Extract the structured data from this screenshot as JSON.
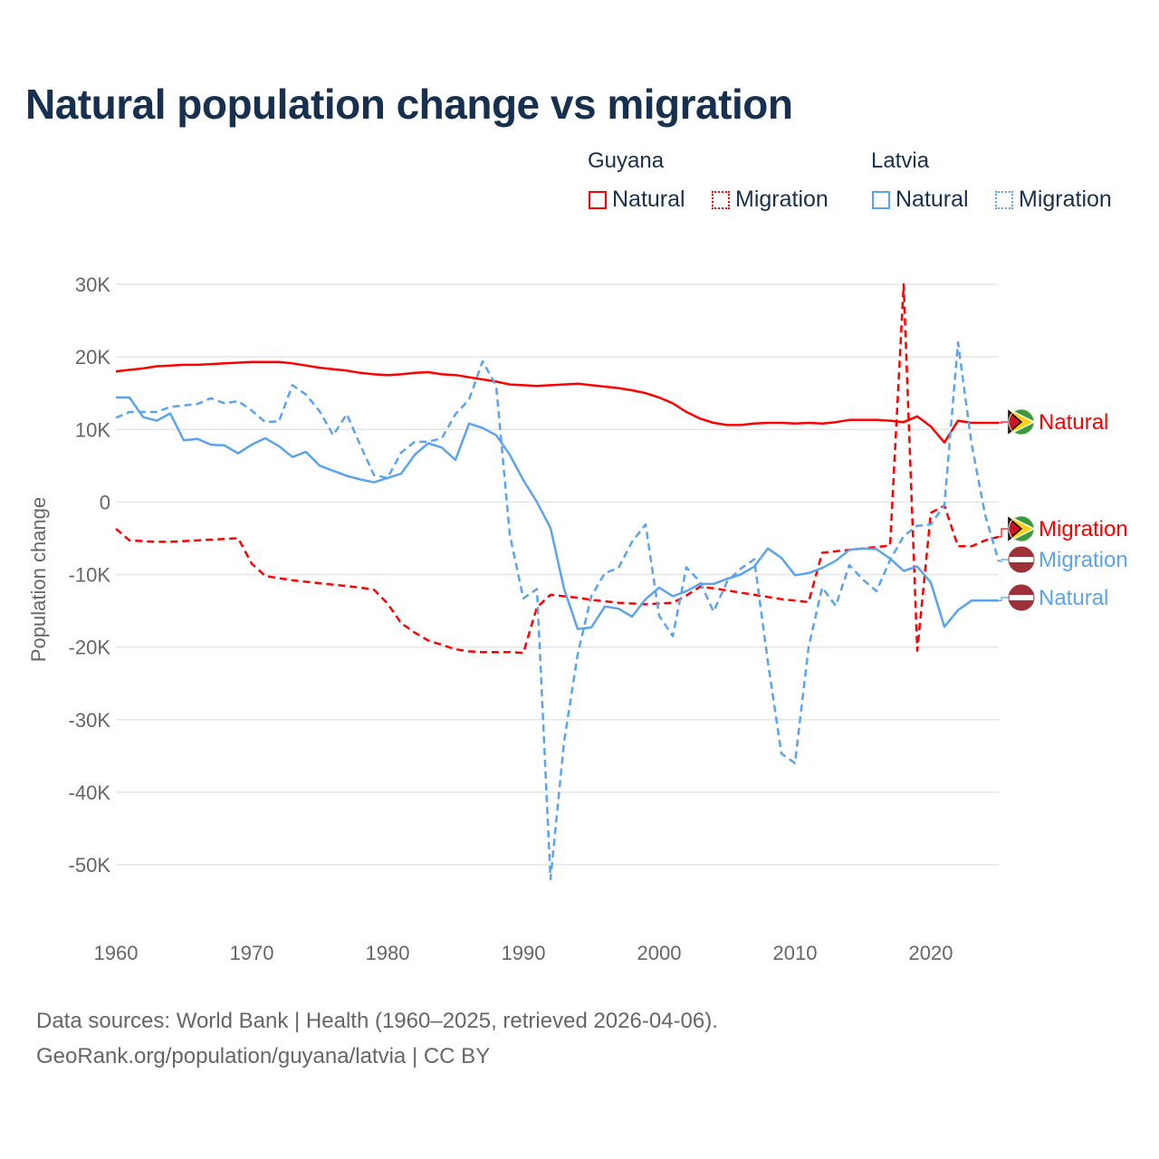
{
  "title": "Natural population change vs migration",
  "legend": {
    "groups": [
      {
        "name": "Guyana",
        "items": [
          {
            "label": "Natural",
            "style": "solid"
          },
          {
            "label": "Migration",
            "style": "dotted"
          }
        ],
        "color": "#ff0000"
      },
      {
        "name": "Latvia",
        "items": [
          {
            "label": "Natural",
            "style": "solid"
          },
          {
            "label": "Migration",
            "style": "dotted"
          }
        ],
        "color": "#5ba4ec"
      }
    ]
  },
  "footer": {
    "line1": "Data sources: World Bank | Health (1960–2025, retrieved 2026-04-06).",
    "line2": "GeoRank.org/population/guyana/latvia | CC BY"
  },
  "chart_data": {
    "type": "line",
    "title": "Natural population change vs migration",
    "xlabel": "",
    "ylabel": "Population change",
    "xlim": [
      1960,
      2025
    ],
    "ylim": [
      -50000,
      30000
    ],
    "x_ticks": [
      1960,
      1970,
      1980,
      1990,
      2000,
      2010,
      2020
    ],
    "x_tick_labels": [
      "1960",
      "1970",
      "1980",
      "1990",
      "2000",
      "2010",
      "2020"
    ],
    "y_ticks": [
      30000,
      20000,
      10000,
      0,
      -10000,
      -20000,
      -30000,
      -40000,
      -50000
    ],
    "y_tick_labels": [
      "30K",
      "20K",
      "10K",
      "0",
      "-10K",
      "-20K",
      "-30K",
      "-40K",
      "-50K"
    ],
    "grid": true,
    "legend_position": "top-right",
    "x_start": 1960,
    "series": [
      {
        "name": "Guyana Natural",
        "end_label": "Natural",
        "country": "guyana",
        "color": "#ff0000",
        "dash": false,
        "values": [
          18000,
          18200,
          18400,
          18700,
          18800,
          18900,
          18900,
          19000,
          19100,
          19200,
          19300,
          19300,
          19300,
          19100,
          18800,
          18500,
          18300,
          18100,
          17800,
          17600,
          17500,
          17600,
          17800,
          17900,
          17600,
          17500,
          17200,
          16900,
          16600,
          16200,
          16100,
          16000,
          16100,
          16200,
          16300,
          16100,
          15900,
          15700,
          15400,
          15000,
          14400,
          13600,
          12400,
          11500,
          10900,
          10600,
          10600,
          10800,
          10900,
          10900,
          10800,
          10900,
          10800,
          11000,
          11300,
          11300,
          11300,
          11200,
          11000,
          11800,
          10400,
          8200,
          11200,
          10900,
          10900,
          10900
        ]
      },
      {
        "name": "Guyana Migration",
        "end_label": "Migration",
        "country": "guyana",
        "color": "#ff0000",
        "dash": true,
        "values": [
          -3700,
          -5300,
          -5400,
          -5500,
          -5500,
          -5400,
          -5300,
          -5200,
          -5100,
          -5000,
          -8500,
          -10200,
          -10500,
          -10800,
          -11000,
          -11200,
          -11400,
          -11600,
          -11800,
          -12100,
          -14000,
          -16700,
          -18000,
          -19100,
          -19700,
          -20300,
          -20600,
          -20700,
          -20700,
          -20700,
          -20800,
          -14500,
          -12800,
          -13000,
          -13200,
          -13500,
          -13700,
          -13900,
          -14000,
          -14100,
          -14000,
          -13900,
          -12900,
          -11700,
          -11900,
          -12200,
          -12500,
          -12800,
          -13100,
          -13400,
          -13600,
          -13800,
          -7000,
          -6800,
          -6600,
          -6400,
          -6200,
          -6000,
          30000,
          -20500,
          -1500,
          -500,
          -6100,
          -6100,
          -5300,
          -4800
        ]
      },
      {
        "name": "Latvia Natural",
        "end_label": "Natural",
        "country": "latvia",
        "color": "#5ba4ec",
        "dash": false,
        "values": [
          14400,
          14400,
          11700,
          11200,
          12200,
          8500,
          8700,
          7900,
          7800,
          6700,
          7900,
          8800,
          7700,
          6200,
          6900,
          5000,
          4300,
          3600,
          3100,
          2700,
          3300,
          3900,
          6500,
          8100,
          7500,
          5800,
          10800,
          10200,
          9200,
          6500,
          3000,
          0,
          -3600,
          -12000,
          -17500,
          -17300,
          -14400,
          -14700,
          -15800,
          -13400,
          -11800,
          -13000,
          -12300,
          -11300,
          -11300,
          -10600,
          -10000,
          -8900,
          -6400,
          -7700,
          -10100,
          -9800,
          -9100,
          -8100,
          -6600,
          -6400,
          -6500,
          -7800,
          -9500,
          -8900,
          -11100,
          -17200,
          -14900,
          -13600,
          -13600,
          -13600
        ]
      },
      {
        "name": "Latvia Migration",
        "end_label": "Migration",
        "country": "latvia",
        "color": "#5ba4ec",
        "dash": true,
        "values": [
          11600,
          12400,
          12400,
          12400,
          13100,
          13300,
          13500,
          14300,
          13600,
          13900,
          12600,
          11000,
          11100,
          16100,
          14800,
          12500,
          9200,
          12100,
          7800,
          3700,
          3300,
          6800,
          8300,
          8300,
          8800,
          12100,
          14100,
          19400,
          16000,
          -4500,
          -13300,
          -12000,
          -52000,
          -33000,
          -21000,
          -13000,
          -9800,
          -9100,
          -5500,
          -3100,
          -15700,
          -18500,
          -9000,
          -11000,
          -15100,
          -11000,
          -9200,
          -7900,
          -22000,
          -34700,
          -36000,
          -20000,
          -11800,
          -14300,
          -8700,
          -10700,
          -12300,
          -8000,
          -4700,
          -3300,
          -3100,
          -400,
          22000,
          8000,
          -1800,
          -8200
        ]
      }
    ]
  }
}
